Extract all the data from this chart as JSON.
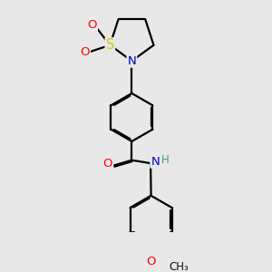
{
  "bg_color": "#e8e8e8",
  "bond_color": "#000000",
  "bond_lw": 1.6,
  "dbo": 0.06,
  "atom_colors": {
    "S": "#cccc00",
    "N": "#0000cc",
    "O": "#ff0000",
    "H": "#4a9090"
  },
  "fs": 9.5,
  "figsize": [
    3.0,
    3.0
  ],
  "dpi": 100
}
